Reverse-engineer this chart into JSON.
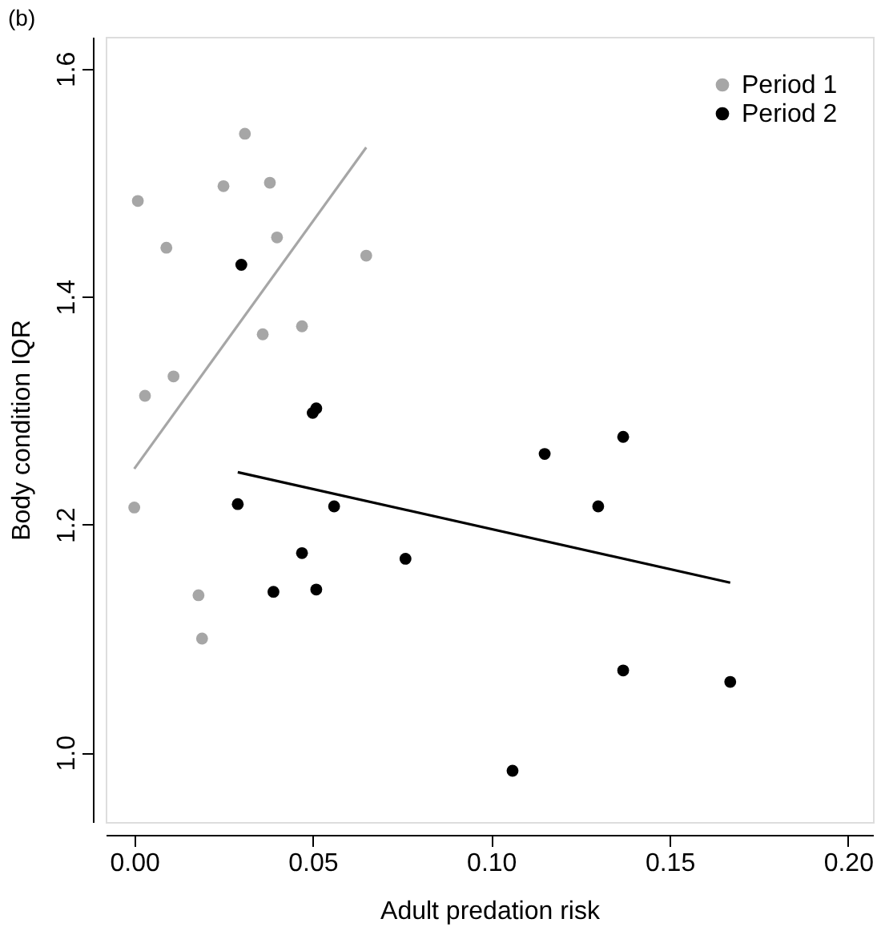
{
  "chart_data": {
    "type": "scatter",
    "xlabel": "Adult predation risk",
    "ylabel": "Body condition IQR",
    "annotations": [
      "(b)"
    ],
    "series": [
      {
        "name": "Period 1",
        "color": "#a6a6a6",
        "marker": "circle",
        "x": [
          0.0,
          0.001,
          0.003,
          0.009,
          0.011,
          0.018,
          0.019,
          0.025,
          0.031,
          0.038,
          0.036,
          0.04,
          0.047,
          0.065
        ],
        "values": [
          1.215,
          1.484,
          1.313,
          1.443,
          1.33,
          1.138,
          1.1,
          1.497,
          1.543,
          1.5,
          1.367,
          1.452,
          1.374,
          1.436
        ]
      },
      {
        "name": "Period 2",
        "color": "#000000",
        "marker": "circle",
        "x": [
          0.03,
          0.029,
          0.039,
          0.047,
          0.05,
          0.051,
          0.051,
          0.056,
          0.076,
          0.106,
          0.115,
          0.13,
          0.137,
          0.137,
          0.167
        ],
        "values": [
          1.428,
          1.218,
          1.141,
          1.175,
          1.298,
          1.302,
          1.143,
          1.216,
          1.17,
          0.984,
          1.262,
          1.216,
          1.277,
          1.072,
          1.062
        ]
      },
      {
        "color": "#a6a6a6",
        "type": "line",
        "marker": "none",
        "x": [
          0.0,
          0.065
        ],
        "values": [
          1.249,
          1.531
        ]
      },
      {
        "color": "#000000",
        "type": "line",
        "marker": "none",
        "x": [
          0.029,
          0.167
        ],
        "values": [
          1.246,
          1.149
        ]
      }
    ],
    "xlim": [
      -0.008,
      0.207
    ],
    "ylim": [
      0.939,
      1.628
    ],
    "xticks": [
      {
        "value": 0,
        "label": "0.00"
      },
      {
        "value": 0.05,
        "label": "0.05"
      },
      {
        "value": 0.1,
        "label": "0.10"
      },
      {
        "value": 0.15,
        "label": "0.15"
      },
      {
        "value": 0.2,
        "label": "0.20"
      }
    ],
    "yticks": [
      {
        "value": 1.0,
        "label": "1.0"
      },
      {
        "value": 1.2,
        "label": "1.2"
      },
      {
        "value": 1.4,
        "label": "1.4"
      },
      {
        "value": 1.6,
        "label": "1.6"
      }
    ],
    "grid": false,
    "legend": "top right",
    "line_style": "solid"
  }
}
